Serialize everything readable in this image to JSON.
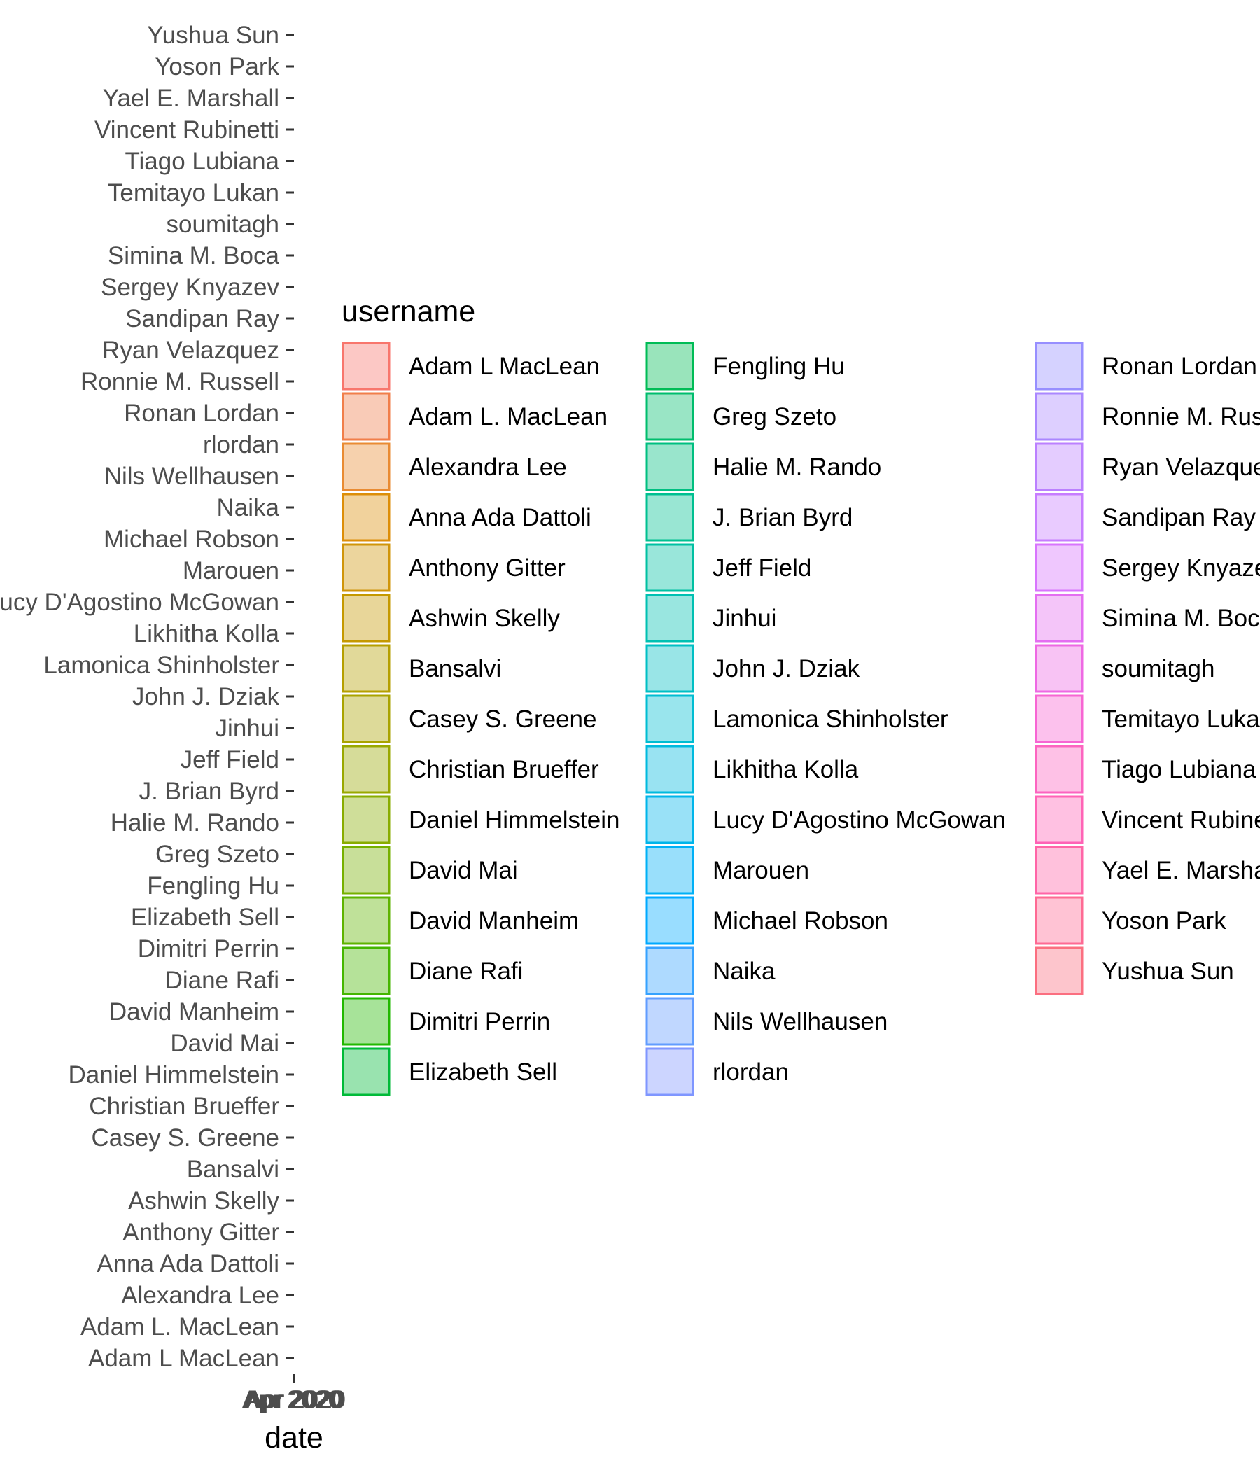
{
  "chart_data": {
    "type": "bar",
    "orientation": "horizontal",
    "xlabel": "date",
    "ylabel": "",
    "x_tick_labels": [
      "Apr 2020",
      "Apr 2020",
      "Apr 2020",
      "Apr 2020",
      "Apr 2020"
    ],
    "categories": [
      "Yushua Sun",
      "Yoson Park",
      "Yael E. Marshall",
      "Vincent Rubinetti",
      "Tiago Lubiana",
      "Temitayo Lukan",
      "soumitagh",
      "Simina M. Boca",
      "Sergey Knyazev",
      "Sandipan Ray",
      "Ryan Velazquez",
      "Ronnie M. Russell",
      "Ronan Lordan",
      "rlordan",
      "Nils Wellhausen",
      "Naika",
      "Michael Robson",
      "Marouen",
      "Lucy D'Agostino McGowan",
      "Likhitha Kolla",
      "Lamonica Shinholster",
      "John J. Dziak",
      "Jinhui",
      "Jeff Field",
      "J. Brian Byrd",
      "Halie M. Rando",
      "Greg Szeto",
      "Fengling Hu",
      "Elizabeth Sell",
      "Dimitri Perrin",
      "Diane Rafi",
      "David Manheim",
      "David Mai",
      "Daniel Himmelstein",
      "Christian Brueffer",
      "Casey S. Greene",
      "Bansalvi",
      "Ashwin Skelly",
      "Anthony Gitter",
      "Anna Ada Dattoli",
      "Alexandra Lee",
      "Adam L. MacLean",
      "Adam L MacLean"
    ],
    "legend": {
      "title": "username",
      "position": "right",
      "entries": [
        {
          "label": "Adam L MacLean",
          "color": "#F8766D"
        },
        {
          "label": "Adam L. MacLean",
          "color": "#F17E4A"
        },
        {
          "label": "Alexandra Lee",
          "color": "#E98B33"
        },
        {
          "label": "Anna Ada Dattoli",
          "color": "#DD8E08"
        },
        {
          "label": "Anthony Gitter",
          "color": "#D0950A"
        },
        {
          "label": "Ashwin Skelly",
          "color": "#C59900"
        },
        {
          "label": "Bansalvi",
          "color": "#B59F00"
        },
        {
          "label": "Casey S. Greene",
          "color": "#A9A300"
        },
        {
          "label": "Christian Brueffer",
          "color": "#99A800"
        },
        {
          "label": "Daniel Himmelstein",
          "color": "#88AC00"
        },
        {
          "label": "David Mai",
          "color": "#76B000"
        },
        {
          "label": "David Manheim",
          "color": "#5EB300"
        },
        {
          "label": "Diane Rafi",
          "color": "#45B600"
        },
        {
          "label": "Dimitri Perrin",
          "color": "#22B800"
        },
        {
          "label": "Elizabeth Sell",
          "color": "#00BA38"
        },
        {
          "label": "Fengling Hu",
          "color": "#00BC56"
        },
        {
          "label": "Greg Szeto",
          "color": "#00BD6D"
        },
        {
          "label": "Halie M. Rando",
          "color": "#00BF80"
        },
        {
          "label": "J. Brian Byrd",
          "color": "#00C091"
        },
        {
          "label": "Jeff Field",
          "color": "#00C0A2"
        },
        {
          "label": "Jinhui",
          "color": "#00C0B2"
        },
        {
          "label": "John J. Dziak",
          "color": "#00BFC4"
        },
        {
          "label": "Lamonica Shinholster",
          "color": "#00BDD2"
        },
        {
          "label": "Likhitha Kolla",
          "color": "#00BADE"
        },
        {
          "label": "Lucy D'Agostino McGowan",
          "color": "#00B5EA"
        },
        {
          "label": "Marouen",
          "color": "#00B0F6"
        },
        {
          "label": "Michael Robson",
          "color": "#00A9FF"
        },
        {
          "label": "Naika",
          "color": "#35A2FF"
        },
        {
          "label": "Nils Wellhausen",
          "color": "#619CFF"
        },
        {
          "label": "rlordan",
          "color": "#7F96FF"
        },
        {
          "label": "Ronan Lordan",
          "color": "#978FFF"
        },
        {
          "label": "Ronnie M. Russell",
          "color": "#AA87FF"
        },
        {
          "label": "Ryan Velazquez",
          "color": "#BB80FF"
        },
        {
          "label": "Sandipan Ray",
          "color": "#C77CFF"
        },
        {
          "label": "Sergey Knyazev",
          "color": "#D874FD"
        },
        {
          "label": "Simina M. Boca",
          "color": "#E46EF1"
        },
        {
          "label": "soumitagh",
          "color": "#EE68E3"
        },
        {
          "label": "Temitayo Lukan",
          "color": "#F765D3"
        },
        {
          "label": "Tiago Lubiana",
          "color": "#FC64C0"
        },
        {
          "label": "Vincent Rubinetti",
          "color": "#FF63B6"
        },
        {
          "label": "Yael E. Marshall",
          "color": "#FF65A7"
        },
        {
          "label": "Yoson Park",
          "color": "#FE6A93"
        },
        {
          "label": "Yushua Sun",
          "color": "#FB6F80"
        }
      ]
    },
    "grid": false,
    "legend_fill_alpha": 0.4
  }
}
